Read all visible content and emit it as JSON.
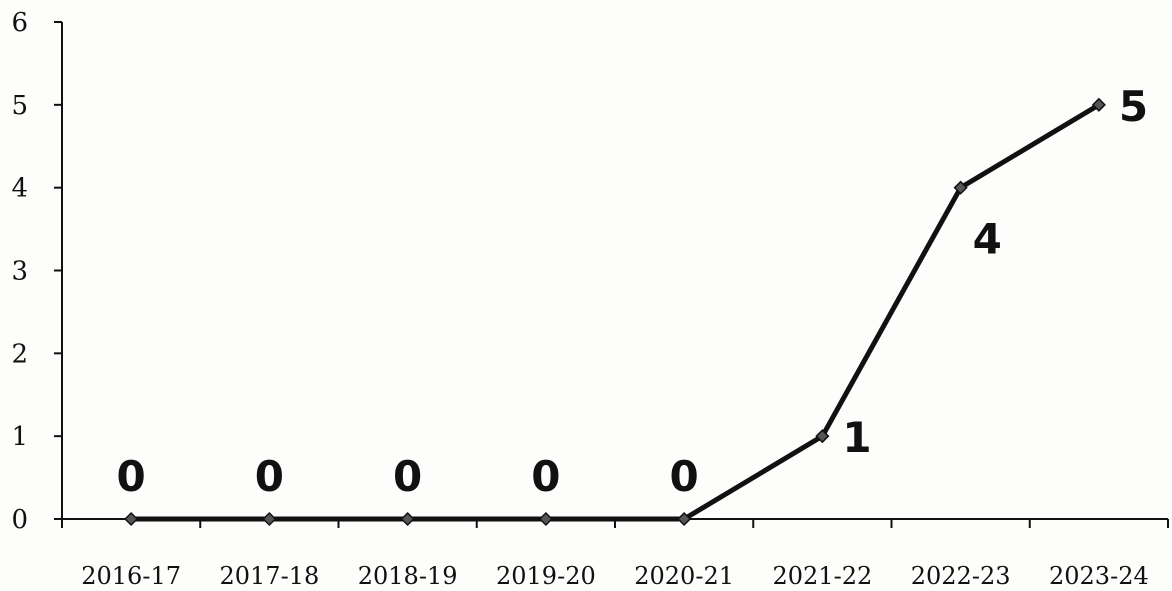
{
  "chart_data": {
    "type": "line",
    "title": "",
    "xlabel": "",
    "ylabel": "",
    "categories": [
      "2016-17",
      "2017-18",
      "2018-19",
      "2019-20",
      "2020-21",
      "2021-22",
      "2022-23",
      "2023-24"
    ],
    "values": [
      0,
      0,
      0,
      0,
      0,
      1,
      4,
      5
    ],
    "data_labels": [
      "0",
      "0",
      "0",
      "0",
      "0",
      "1",
      "4",
      "5"
    ],
    "ylim": [
      0,
      6
    ],
    "yticks": [
      "0",
      "1",
      "2",
      "3",
      "4",
      "5",
      "6"
    ],
    "grid": false,
    "legend": "none",
    "colors": {
      "line": "#111111",
      "marker": "#555555",
      "text": "#111111"
    }
  }
}
